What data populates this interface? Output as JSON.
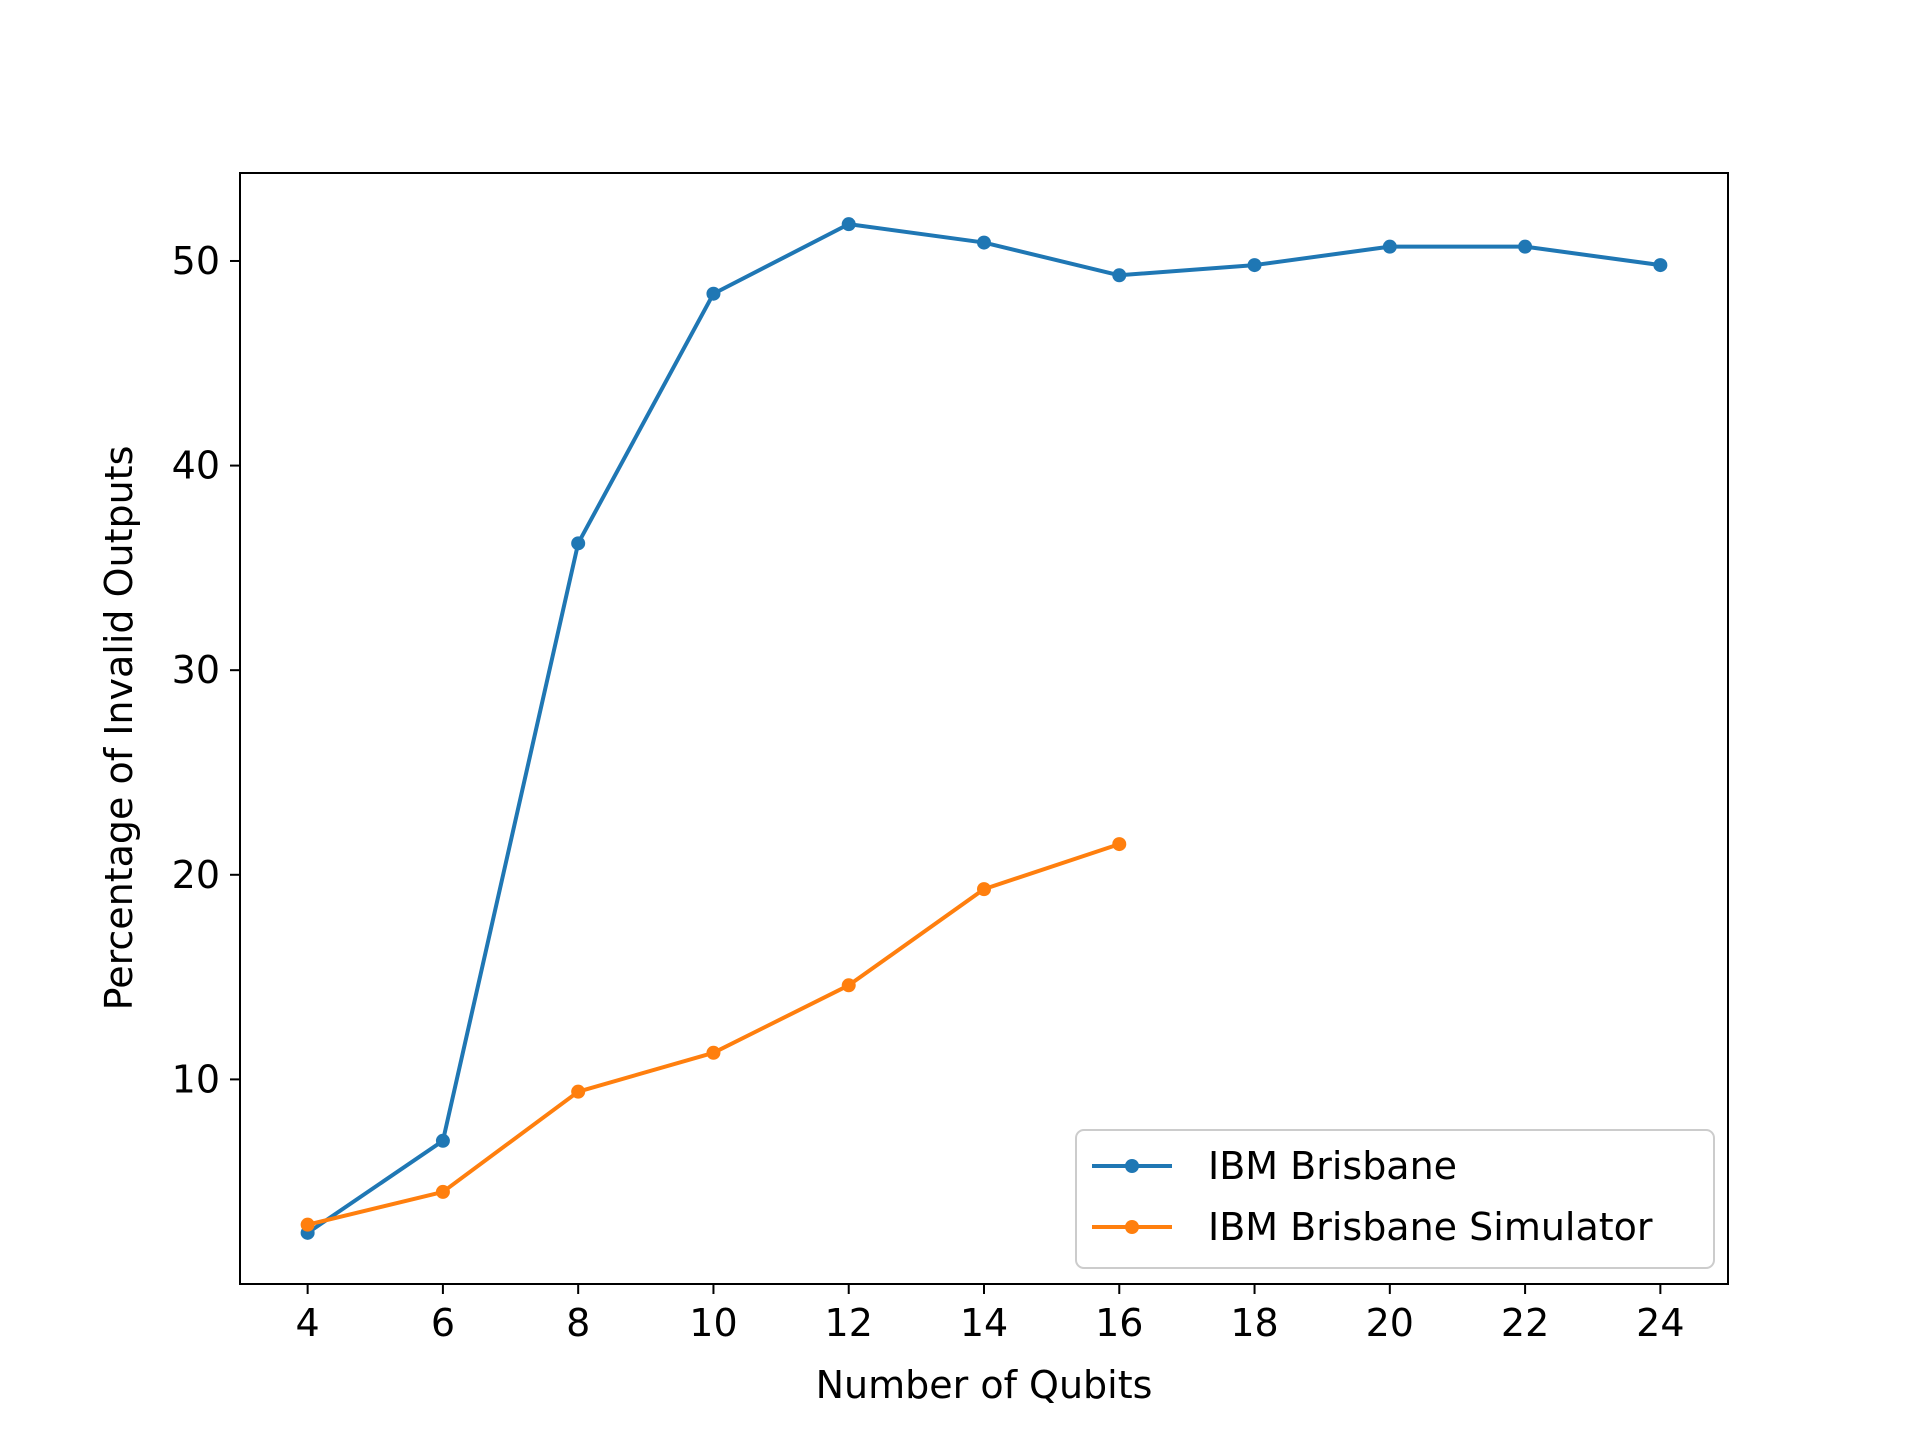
{
  "chart_data": {
    "type": "line",
    "title": "",
    "xlabel": "Number of Qubits",
    "ylabel": "Percentage of Invalid Outputs",
    "xlim": [
      3,
      25
    ],
    "ylim": [
      0,
      54.3
    ],
    "xticks": [
      4,
      6,
      8,
      10,
      12,
      14,
      16,
      18,
      20,
      22,
      24
    ],
    "xtick_labels": [
      "4",
      "6",
      "8",
      "10",
      "12",
      "14",
      "16",
      "18",
      "20",
      "22",
      "24"
    ],
    "yticks": [
      10,
      20,
      30,
      40,
      50
    ],
    "ytick_labels": [
      "10",
      "20",
      "30",
      "40",
      "50"
    ],
    "grid": false,
    "legend_position": "lower right",
    "series": [
      {
        "name": "IBM Brisbane",
        "color": "#1f77b4",
        "x": [
          4,
          6,
          8,
          10,
          12,
          14,
          16,
          18,
          20,
          22,
          24
        ],
        "values": [
          2.5,
          7.0,
          36.2,
          48.4,
          51.8,
          50.9,
          49.3,
          49.8,
          50.7,
          50.7,
          49.8
        ]
      },
      {
        "name": "IBM Brisbane Simulator",
        "color": "#ff7f0e",
        "x": [
          4,
          6,
          8,
          10,
          12,
          14,
          16
        ],
        "values": [
          2.9,
          4.5,
          9.4,
          11.3,
          14.6,
          19.3,
          21.5
        ]
      }
    ]
  }
}
